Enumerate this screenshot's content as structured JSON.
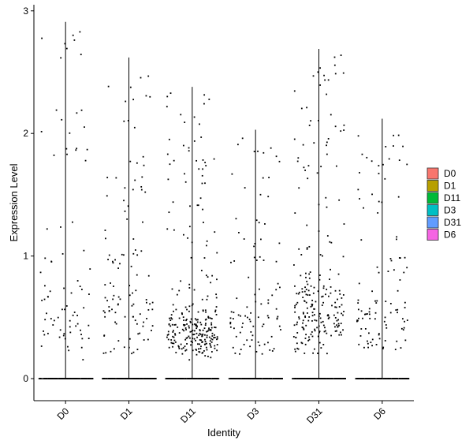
{
  "chart_data": {
    "type": "violin",
    "xlabel": "Identity",
    "ylabel": "Expression Level",
    "categories": [
      "D0",
      "D1",
      "D11",
      "D3",
      "D31",
      "D6"
    ],
    "ylim": [
      -0.18,
      3.05
    ],
    "yticks": [
      0,
      1,
      2,
      3
    ],
    "legend": {
      "placement": "right",
      "items": [
        {
          "name": "D0",
          "color": "#F8766D"
        },
        {
          "name": "D1",
          "color": "#B79F00"
        },
        {
          "name": "D11",
          "color": "#00BA38"
        },
        {
          "name": "D3",
          "color": "#00BFC4"
        },
        {
          "name": "D31",
          "color": "#619CFF"
        },
        {
          "name": "D6",
          "color": "#F564E3"
        }
      ]
    },
    "max_values": [
      2.91,
      2.62,
      2.38,
      2.03,
      2.69,
      2.12
    ],
    "approx_nonzero_points": [
      80,
      110,
      270,
      95,
      230,
      105
    ],
    "point_color": "#000000",
    "violin_line_color": "#000000"
  }
}
